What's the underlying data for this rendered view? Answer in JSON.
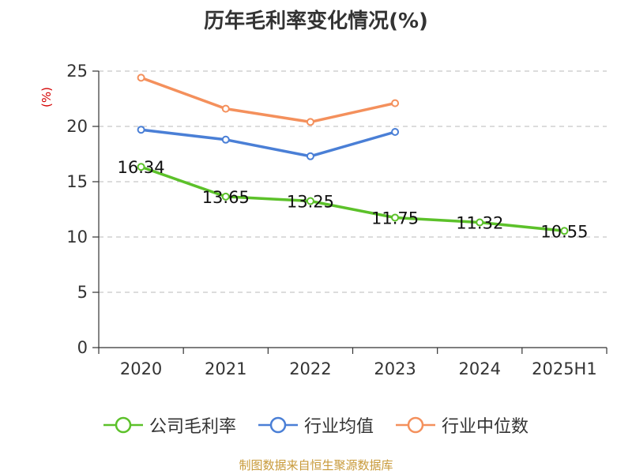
{
  "chart_data": {
    "type": "line",
    "title": "历年毛利率变化情况(%)",
    "ylabel": "(%)",
    "xlabel": "",
    "categories": [
      "2020",
      "2021",
      "2022",
      "2023",
      "2024",
      "2025H1"
    ],
    "yticks": [
      "0",
      "5",
      "10",
      "15",
      "20",
      "25"
    ],
    "ylim": [
      0,
      25
    ],
    "grid": true,
    "legend_position": "bottom",
    "series": [
      {
        "name": "公司毛利率",
        "color": "#5cc12a",
        "values": [
          16.34,
          13.65,
          13.25,
          11.75,
          11.32,
          10.55
        ],
        "labels": [
          "16.34",
          "13.65",
          "13.25",
          "11.75",
          "11.32",
          "10.55"
        ]
      },
      {
        "name": "行业均值",
        "color": "#4a7fd6",
        "values": [
          19.7,
          18.8,
          17.3,
          19.5,
          null,
          null
        ]
      },
      {
        "name": "行业中位数",
        "color": "#f4905c",
        "values": [
          24.4,
          21.6,
          20.4,
          22.1,
          null,
          null
        ]
      }
    ]
  },
  "source_note": "制图数据来自恒生聚源数据库"
}
